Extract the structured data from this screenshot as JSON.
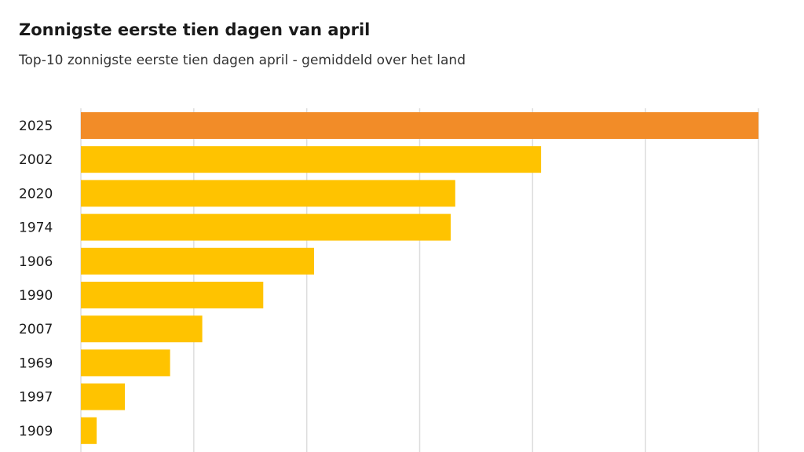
{
  "chart_data": {
    "type": "bar",
    "orientation": "horizontal",
    "title": "Zonnigste eerste tien dagen van april",
    "subtitle": "Top-10 zonnigste eerste tien dagen april - gemiddeld over het land",
    "categories": [
      "2025",
      "2002",
      "2020",
      "1974",
      "1906",
      "1990",
      "2007",
      "1969",
      "1997",
      "1909"
    ],
    "values": [
      120,
      81.5,
      66.3,
      65.5,
      41.3,
      32.3,
      21.5,
      15.8,
      7.8,
      2.8
    ],
    "highlight_index": 0,
    "xlim": [
      0,
      120
    ],
    "grid": true,
    "gridlines": [
      0,
      20,
      40,
      60,
      80,
      100,
      120
    ],
    "colors": {
      "highlight": "#F28C28",
      "bar": "#FFC300",
      "grid": "#dddddd"
    }
  }
}
